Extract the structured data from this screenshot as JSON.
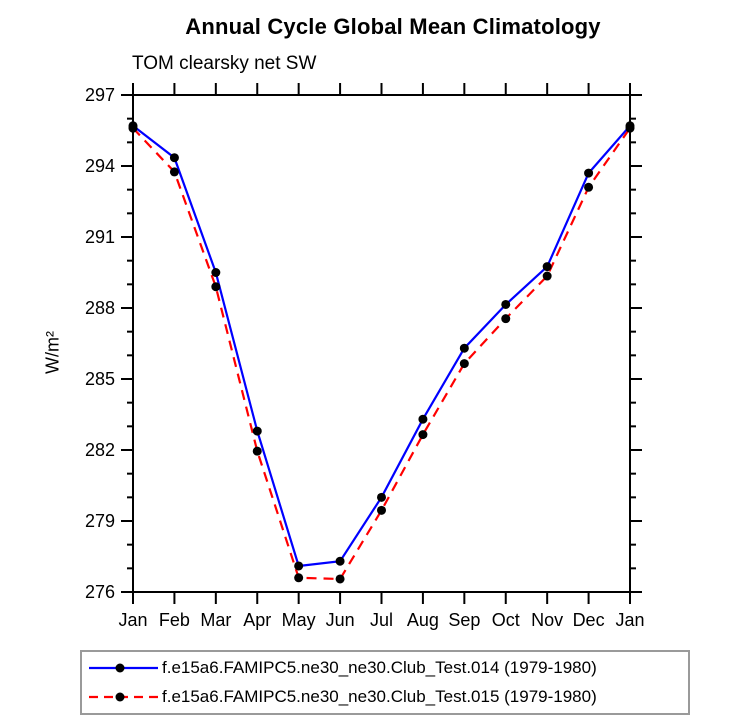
{
  "page": {
    "background": "#ffffff"
  },
  "chart_data": {
    "type": "line",
    "title": "Annual Cycle Global Mean Climatology",
    "subtitle": "TOM clearsky net SW",
    "ylabel": "W/m²",
    "xlabel": "",
    "categories": [
      "Jan",
      "Feb",
      "Mar",
      "Apr",
      "May",
      "Jun",
      "Jul",
      "Aug",
      "Sep",
      "Oct",
      "Nov",
      "Dec",
      "Jan"
    ],
    "ylim": [
      276,
      297
    ],
    "y_major_step": 3,
    "y_minor_step": 1,
    "y_major_ticks": [
      276,
      279,
      282,
      285,
      288,
      291,
      294,
      297
    ],
    "grid": false,
    "legend_position": "bottom",
    "series": [
      {
        "name": "f.e15a6.FAMIPC5.ne30_ne30.Club_Test.014 (1979-1980)",
        "color": "#0000ff",
        "line_style": "solid",
        "marker": "circle",
        "marker_color": "#000000",
        "values": [
          295.7,
          294.35,
          289.5,
          282.8,
          277.1,
          277.3,
          280.0,
          283.3,
          286.3,
          288.15,
          289.75,
          293.7,
          295.7
        ]
      },
      {
        "name": "f.e15a6.FAMIPC5.ne30_ne30.Club_Test.015 (1979-1980)",
        "color": "#ff0000",
        "line_style": "dashed",
        "marker": "circle",
        "marker_color": "#000000",
        "values": [
          295.6,
          293.75,
          288.9,
          281.95,
          276.6,
          276.55,
          279.45,
          282.65,
          285.65,
          287.55,
          289.35,
          293.1,
          295.6
        ]
      }
    ],
    "colors": {
      "axis": "#000000",
      "background": "#ffffff",
      "legend_border": "#9a9a9a"
    }
  }
}
